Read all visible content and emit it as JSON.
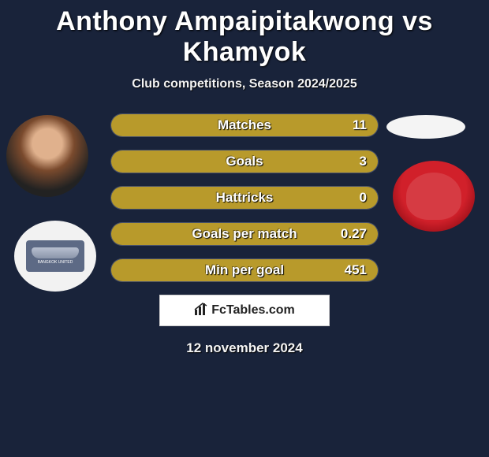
{
  "title": "Anthony Ampaipitakwong vs Khamyok",
  "subtitle": "Club competitions, Season 2024/2025",
  "date_text": "12 november 2024",
  "footer": {
    "site": "FcTables.com"
  },
  "colors": {
    "background": "#19233a",
    "bar_fill": "#b89a2b",
    "bar_track": "#2a3450"
  },
  "club1_label": "BANGKOK UNITED",
  "stats": [
    {
      "label": "Matches",
      "value": "11",
      "fill_pct": 100
    },
    {
      "label": "Goals",
      "value": "3",
      "fill_pct": 100
    },
    {
      "label": "Hattricks",
      "value": "0",
      "fill_pct": 100
    },
    {
      "label": "Goals per match",
      "value": "0.27",
      "fill_pct": 100
    },
    {
      "label": "Min per goal",
      "value": "451",
      "fill_pct": 100
    }
  ]
}
